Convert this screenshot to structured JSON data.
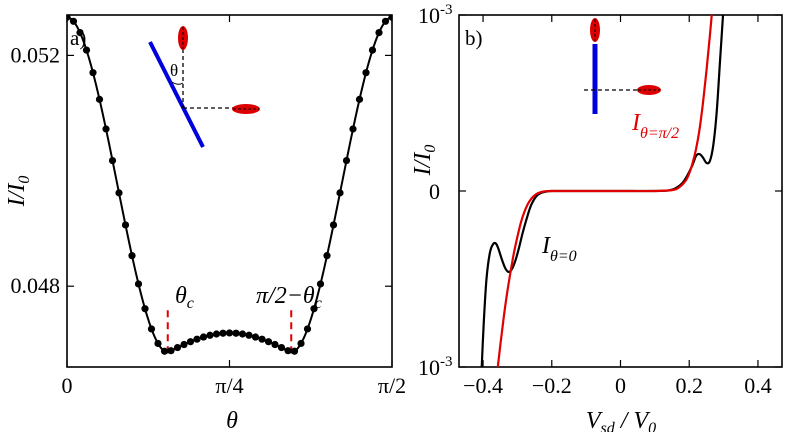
{
  "colors": {
    "black": "#000000",
    "red": "#e00000",
    "blue": "#0000dd",
    "ellipse": "#dd0000"
  },
  "chart_data": [
    {
      "panel_label": "a)",
      "type": "line",
      "title": "",
      "xlabel": "θ",
      "ylabel": "I/I",
      "ylabel_sub": "0",
      "xlim": [
        0,
        1.5708
      ],
      "ylim": [
        0.0466,
        0.0527
      ],
      "xticks": [
        {
          "value": 0,
          "label": "0"
        },
        {
          "value": 0.7854,
          "label": "π/4"
        },
        {
          "value": 1.5708,
          "label": "π/2"
        }
      ],
      "yticks": [
        {
          "value": 0.048,
          "label": "0.048"
        },
        {
          "value": 0.052,
          "label": "0.052"
        }
      ],
      "series": [
        {
          "name": "I(θ)",
          "color": "#000000",
          "markers": "circle",
          "n_points": 51,
          "edge_value": 0.05266,
          "min_value": 0.046855,
          "max_mid_value": 0.04719,
          "theta_c": 0.487
        }
      ],
      "annotations": [
        {
          "text": "θ",
          "sub": "c",
          "at_x": 0.487
        },
        {
          "text": "π/2−θ",
          "sub": "c",
          "at_x": 1.0838
        }
      ],
      "inset": {
        "angle_label": "θ"
      }
    },
    {
      "panel_label": "b)",
      "type": "line",
      "title": "",
      "xlabel": "V",
      "xlabel_sub": "sd",
      "xlabel_tail": " / V",
      "xlabel_tail_sub": "0",
      "ylabel": "I/I",
      "ylabel_sub": "0",
      "xlim": [
        -0.47,
        0.47
      ],
      "ylim": [
        -1.0,
        1.0
      ],
      "xticks": [
        {
          "value": -0.4,
          "label": "−0.4"
        },
        {
          "value": -0.2,
          "label": "−0.2"
        },
        {
          "value": 0,
          "label": "0"
        },
        {
          "value": 0.2,
          "label": "0.2"
        },
        {
          "value": 0.4,
          "label": "0.4"
        }
      ],
      "yticks": [
        {
          "value": -1,
          "label": "10",
          "exp": "-3"
        },
        {
          "value": 0,
          "label": "0"
        },
        {
          "value": 1,
          "label": "10",
          "exp": "-3"
        }
      ],
      "series": [
        {
          "name": "I",
          "sub": "θ=0",
          "color": "#000000",
          "x": [
            -0.405,
            -0.398,
            -0.39,
            -0.38,
            -0.37,
            -0.362,
            -0.355,
            -0.345,
            -0.335,
            -0.325,
            -0.315,
            -0.305,
            -0.295,
            -0.285,
            -0.272,
            -0.26,
            -0.245,
            -0.23,
            -0.215,
            -0.2,
            -0.15,
            -0.1,
            -0.05,
            0,
            0.05,
            0.1,
            0.14,
            0.16,
            0.18,
            0.195,
            0.21,
            0.22,
            0.23,
            0.24,
            0.25,
            0.26,
            0.27,
            0.28,
            0.29,
            0.3,
            0.31
          ],
          "y": [
            -1.05,
            -0.75,
            -0.5,
            -0.35,
            -0.3,
            -0.3,
            -0.33,
            -0.39,
            -0.44,
            -0.46,
            -0.44,
            -0.39,
            -0.32,
            -0.24,
            -0.15,
            -0.08,
            -0.03,
            -0.01,
            -0.003,
            0,
            0,
            0,
            0,
            0,
            0,
            0,
            0.003,
            0.015,
            0.045,
            0.09,
            0.15,
            0.2,
            0.21,
            0.19,
            0.16,
            0.17,
            0.26,
            0.45,
            0.75,
            1.05,
            1.4
          ]
        },
        {
          "name": "I",
          "sub": "θ=π/2",
          "color": "#e00000",
          "x": [
            -0.36,
            -0.35,
            -0.34,
            -0.33,
            -0.32,
            -0.31,
            -0.3,
            -0.29,
            -0.28,
            -0.27,
            -0.26,
            -0.25,
            -0.24,
            -0.23,
            -0.22,
            -0.2,
            -0.1,
            0,
            0.1,
            0.15,
            0.17,
            0.19,
            0.2,
            0.21,
            0.22,
            0.23,
            0.24,
            0.25,
            0.26,
            0.27
          ],
          "y": [
            -1.05,
            -0.88,
            -0.72,
            -0.58,
            -0.46,
            -0.35,
            -0.26,
            -0.18,
            -0.12,
            -0.075,
            -0.045,
            -0.025,
            -0.012,
            -0.005,
            -0.002,
            0,
            0,
            0,
            0,
            0.005,
            0.02,
            0.06,
            0.1,
            0.16,
            0.24,
            0.35,
            0.5,
            0.68,
            0.88,
            1.1
          ]
        }
      ]
    }
  ]
}
